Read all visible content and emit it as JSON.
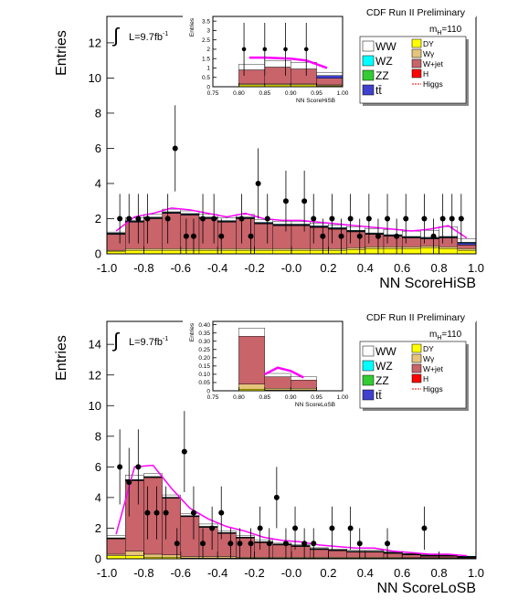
{
  "chart_data": [
    {
      "type": "histogram",
      "title": "CDF Run II Preliminary",
      "mass": "m",
      "mass_sub": "H",
      "mass_value": "=110",
      "lumi_symbol": "∫",
      "lumi": "L=9.7fb",
      "lumi_exp": "-1",
      "xlabel": "NN ScoreHiSB",
      "ylabel": "Entries",
      "bins": [
        -1,
        -0.9,
        -0.8,
        -0.7,
        -0.6,
        -0.5,
        -0.4,
        -0.3,
        -0.2,
        -0.1,
        0,
        0.1,
        0.2,
        0.3,
        0.4,
        0.5,
        0.6,
        0.7,
        0.8,
        0.9,
        1
      ],
      "xlim": [
        -1,
        1
      ],
      "xticks": [
        {
          "value": -1,
          "label": "-1.0"
        },
        -0.8,
        -0.6,
        -0.4,
        -0.2,
        {
          "value": 0,
          "label": "-0.0"
        },
        0.2,
        0.4,
        0.6,
        0.8,
        {
          "value": 1,
          "label": "1.0"
        }
      ],
      "ylim": [
        0,
        13.5
      ],
      "yticks": [
        0,
        2,
        4,
        6,
        8,
        10,
        12
      ],
      "series": [
        {
          "name": "DY",
          "color": "#ffff00",
          "values": [
            0.15,
            0.2,
            0.2,
            0.2,
            0.2,
            0.2,
            0.2,
            0.2,
            0.2,
            0.2,
            0.2,
            0.2,
            0.2,
            0.25,
            0.3,
            0.3,
            0.3,
            0.35,
            0.3,
            0.2
          ]
        },
        {
          "name": "Wγ",
          "color": "#e6c47c",
          "values": [
            0.05,
            0.1,
            0.1,
            0.1,
            0.1,
            0.1,
            0.1,
            0.1,
            0.1,
            0.1,
            0.1,
            0.1,
            0.1,
            0.1,
            0.1,
            0.1,
            0.1,
            0.1,
            0.1,
            0.1
          ]
        },
        {
          "name": "W+jet",
          "color": "#c8646a",
          "values": [
            0.9,
            1.5,
            1.7,
            2.0,
            1.9,
            1.7,
            1.5,
            1.7,
            1.4,
            1.3,
            1.3,
            1.2,
            1.1,
            0.9,
            0.7,
            0.6,
            0.5,
            0.4,
            0.5,
            0.2
          ]
        },
        {
          "name": "H",
          "color": "#ff0000",
          "values": [
            0.01,
            0.01,
            0.01,
            0.01,
            0.01,
            0.01,
            0.01,
            0.01,
            0.01,
            0.01,
            0.01,
            0.01,
            0.01,
            0.01,
            0.01,
            0.01,
            0.01,
            0.01,
            0.01,
            0.01
          ]
        },
        {
          "name": "tt̄",
          "color": "#4040cc",
          "values": [
            0.03,
            0.03,
            0.03,
            0.03,
            0.03,
            0.03,
            0.03,
            0.03,
            0.03,
            0.03,
            0.03,
            0.03,
            0.03,
            0.03,
            0.03,
            0.03,
            0.03,
            0.03,
            0.03,
            0.1
          ]
        },
        {
          "name": "ZZ",
          "color": "#33cc33",
          "values": [
            0.02,
            0.02,
            0.02,
            0.02,
            0.02,
            0.02,
            0.02,
            0.02,
            0.02,
            0.02,
            0.02,
            0.02,
            0.02,
            0.02,
            0.02,
            0.02,
            0.02,
            0.02,
            0.02,
            0.02
          ]
        },
        {
          "name": "WZ",
          "color": "#00ffff",
          "values": [
            0.03,
            0.03,
            0.03,
            0.03,
            0.03,
            0.03,
            0.03,
            0.03,
            0.03,
            0.03,
            0.03,
            0.03,
            0.03,
            0.03,
            0.03,
            0.03,
            0.03,
            0.03,
            0.03,
            0.03
          ]
        },
        {
          "name": "WW",
          "color": "#ffffff",
          "values": [
            0.05,
            0.15,
            0.15,
            0.15,
            0.15,
            0.15,
            0.15,
            0.15,
            0.15,
            0.15,
            0.15,
            0.15,
            0.15,
            0.2,
            0.25,
            0.3,
            0.3,
            0.4,
            0.55,
            0.2
          ]
        }
      ],
      "signal": {
        "name": "Higgs",
        "color": "#ff00ff",
        "values": [
          1.3,
          2.1,
          2.3,
          2.6,
          2.5,
          2.3,
          2.1,
          2.3,
          2.0,
          1.9,
          1.9,
          1.8,
          1.7,
          1.6,
          1.5,
          1.4,
          1.3,
          1.4,
          1.6,
          0.9
        ]
      },
      "data_points": {
        "x": [
          -0.93,
          -0.88,
          -0.83,
          -0.78,
          -0.67,
          -0.63,
          -0.57,
          -0.53,
          -0.48,
          -0.42,
          -0.38,
          -0.27,
          -0.22,
          -0.18,
          -0.13,
          -0.03,
          0.07,
          0.12,
          0.17,
          0.22,
          0.27,
          0.32,
          0.37,
          0.42,
          0.47,
          0.52,
          0.57,
          0.62,
          0.72,
          0.77,
          0.82,
          0.87,
          0.92
        ],
        "values": [
          2,
          2,
          2,
          2,
          2,
          6,
          1,
          1,
          2,
          2,
          1,
          2,
          1,
          4,
          2,
          3,
          3,
          2,
          1,
          2,
          1,
          2,
          1,
          2,
          1,
          2,
          1,
          2,
          2,
          1,
          2,
          2,
          2
        ],
        "errors": [
          1.41,
          1.41,
          1.41,
          1.41,
          1.41,
          2.45,
          1,
          1,
          1.41,
          1.41,
          1,
          1.41,
          1,
          2,
          1.41,
          1.73,
          1.73,
          1.41,
          1,
          1.41,
          1,
          1.41,
          1,
          1.41,
          1,
          1.41,
          1,
          1.41,
          1.41,
          1,
          1.41,
          1.41,
          1.41
        ]
      }
    },
    {
      "type": "histogram",
      "xlabel": "NN ScoreHiSB",
      "ylabel": "Entries",
      "bins": [
        0.75,
        0.8,
        0.85,
        0.9,
        0.95,
        1
      ],
      "xlim": [
        0.75,
        1
      ],
      "xticks": [
        0.75,
        {
          "value": 0.8,
          "label": "0.80"
        },
        0.85,
        {
          "value": 0.9,
          "label": "0.90"
        },
        0.95,
        {
          "value": 1,
          "label": "1.00"
        }
      ],
      "ylim": [
        0,
        3.75
      ],
      "yticks": [
        0,
        0.5,
        1,
        1.5,
        2,
        2.5,
        3,
        3.5
      ],
      "series": [
        {
          "name": "DY",
          "color": "#ffff00",
          "values": [
            0,
            0.1,
            0.1,
            0.1,
            0.05
          ]
        },
        {
          "name": "Wγ",
          "color": "#e6c47c",
          "values": [
            0,
            0.05,
            0.05,
            0.05,
            0.05
          ]
        },
        {
          "name": "W+jet",
          "color": "#c8646a",
          "values": [
            0,
            0.75,
            0.9,
            0.8,
            0.35
          ]
        },
        {
          "name": "tt̄",
          "color": "#4040cc",
          "values": [
            0,
            0,
            0,
            0,
            0.15
          ]
        },
        {
          "name": "WW",
          "color": "#ffffff",
          "values": [
            0,
            0.3,
            0.35,
            0.35,
            0.15
          ]
        }
      ],
      "signal": {
        "color": "#ff00ff",
        "x": [
          0.82,
          0.85,
          0.9,
          0.93,
          0.97
        ],
        "values": [
          1.55,
          1.55,
          1.5,
          1.4,
          1.0
        ]
      },
      "data_points": {
        "x": [
          0.81,
          0.85,
          0.89,
          0.93
        ],
        "values": [
          2,
          2,
          2,
          2
        ],
        "errors": [
          1.41,
          1.41,
          1.41,
          1.41
        ]
      }
    },
    {
      "type": "histogram",
      "title": "CDF Run II Preliminary",
      "mass": "m",
      "mass_sub": "H",
      "mass_value": "=110",
      "lumi_symbol": "∫",
      "lumi": "L=9.7fb",
      "lumi_exp": "-1",
      "xlabel": "NN ScoreLoSB",
      "ylabel": "Entries",
      "bins": [
        -1,
        -0.9,
        -0.8,
        -0.7,
        -0.6,
        -0.5,
        -0.4,
        -0.3,
        -0.2,
        -0.1,
        0,
        0.1,
        0.2,
        0.3,
        0.4,
        0.5,
        0.6,
        0.7,
        0.8,
        0.9,
        1
      ],
      "xlim": [
        -1,
        1
      ],
      "xticks": [
        {
          "value": -1,
          "label": "-1.0"
        },
        -0.8,
        -0.6,
        -0.4,
        -0.2,
        {
          "value": 0,
          "label": "-0.0"
        },
        0.2,
        0.4,
        0.6,
        0.8,
        {
          "value": 1,
          "label": "1.0"
        }
      ],
      "ylim": [
        0,
        15.5
      ],
      "yticks": [
        0,
        2,
        4,
        6,
        8,
        10,
        12,
        14
      ],
      "series": [
        {
          "name": "DY",
          "color": "#ffff00",
          "values": [
            0.2,
            0.2,
            0.1,
            0.1,
            0.05,
            0.05,
            0.05,
            0.05,
            0.05,
            0.05,
            0.05,
            0.05,
            0.05,
            0.05,
            0.05,
            0.05,
            0.05,
            0.05,
            0.05,
            0.05
          ]
        },
        {
          "name": "Wγ",
          "color": "#e6c47c",
          "values": [
            0.1,
            0.3,
            0.2,
            0.15,
            0.1,
            0.1,
            0.1,
            0.05,
            0.05,
            0.05,
            0.05,
            0.05,
            0.05,
            0.05,
            0.05,
            0.05,
            0.02,
            0.02,
            0.02,
            0.01
          ]
        },
        {
          "name": "W+jet",
          "color": "#c8646a",
          "values": [
            1.0,
            4.6,
            5.0,
            3.7,
            2.6,
            1.9,
            1.5,
            1.25,
            0.95,
            0.8,
            0.7,
            0.5,
            0.42,
            0.33,
            0.33,
            0.25,
            0.18,
            0.1,
            0.1,
            0.03
          ]
        },
        {
          "name": "H",
          "color": "#ff0000",
          "values": [
            0.01,
            0.01,
            0.01,
            0.01,
            0.01,
            0.01,
            0.01,
            0.01,
            0.01,
            0.01,
            0.01,
            0.01,
            0.01,
            0.01,
            0.01,
            0.01,
            0.01,
            0.01,
            0.01,
            0.01
          ]
        },
        {
          "name": "tt̄",
          "color": "#4040cc",
          "values": [
            0.02,
            0.02,
            0.02,
            0.02,
            0.02,
            0.02,
            0.02,
            0.02,
            0.02,
            0.02,
            0.02,
            0.02,
            0.02,
            0.02,
            0.02,
            0.02,
            0.02,
            0.02,
            0.02,
            0.02
          ]
        },
        {
          "name": "ZZ",
          "color": "#33cc33",
          "values": [
            0.02,
            0.02,
            0.02,
            0.02,
            0.02,
            0.02,
            0.02,
            0.02,
            0.02,
            0.02,
            0.02,
            0.02,
            0.02,
            0.02,
            0.02,
            0.02,
            0.02,
            0.02,
            0.02,
            0.02
          ]
        },
        {
          "name": "WZ",
          "color": "#00ffff",
          "values": [
            0.02,
            0.02,
            0.02,
            0.02,
            0.02,
            0.02,
            0.02,
            0.02,
            0.02,
            0.02,
            0.02,
            0.02,
            0.02,
            0.02,
            0.02,
            0.02,
            0.02,
            0.02,
            0.02,
            0.02
          ]
        },
        {
          "name": "WW",
          "color": "#ffffff",
          "values": [
            0.15,
            0.3,
            0.2,
            0.15,
            0.15,
            0.15,
            0.1,
            0.1,
            0.1,
            0.05,
            0.05,
            0.05,
            0.05,
            0.05,
            0.05,
            0.03,
            0.03,
            0.03,
            0.03,
            0.01
          ]
        }
      ],
      "signal": {
        "name": "Higgs",
        "color": "#ff00ff",
        "values": [
          1.6,
          6.0,
          6.1,
          4.6,
          3.3,
          2.6,
          2.1,
          1.8,
          1.4,
          1.2,
          1.1,
          0.9,
          0.8,
          0.7,
          0.7,
          0.5,
          0.4,
          0.3,
          0.3,
          0.2
        ]
      },
      "data_points": {
        "x": [
          -0.93,
          -0.88,
          -0.83,
          -0.78,
          -0.73,
          -0.68,
          -0.62,
          -0.58,
          -0.53,
          -0.48,
          -0.43,
          -0.38,
          -0.33,
          -0.28,
          -0.22,
          -0.17,
          -0.12,
          -0.08,
          -0.03,
          0.02,
          0.07,
          0.12,
          0.22,
          0.32,
          0.37,
          0.52,
          0.72
        ],
        "values": [
          6,
          5,
          6,
          3,
          3,
          3,
          1,
          7,
          3,
          1,
          2,
          3,
          1,
          1,
          1,
          2,
          1,
          4,
          1,
          2,
          1,
          1,
          2,
          2,
          1,
          1,
          2
        ],
        "errors": [
          2.45,
          2.24,
          2.45,
          1.73,
          1.73,
          1.73,
          1,
          2.65,
          1.73,
          1,
          1.41,
          1.73,
          1,
          1,
          1,
          1.41,
          1,
          2,
          1,
          1.41,
          1,
          1,
          1.41,
          1.41,
          1,
          1,
          1.41
        ]
      }
    },
    {
      "type": "histogram",
      "xlabel": "NN ScoreLoSB",
      "ylabel": "Entries",
      "bins": [
        0.75,
        0.8,
        0.85,
        0.9,
        0.95,
        1
      ],
      "xlim": [
        0.75,
        1
      ],
      "xticks": [
        0.75,
        {
          "value": 0.8,
          "label": "0.80"
        },
        0.85,
        {
          "value": 0.9,
          "label": "0.90"
        },
        0.95,
        {
          "value": 1,
          "label": "1.00"
        }
      ],
      "ylim": [
        0,
        0.42
      ],
      "yticks": [
        0,
        0.05,
        {
          "value": 0.1,
          "label": "0.10"
        },
        0.15,
        {
          "value": 0.2,
          "label": "0.20"
        },
        0.25,
        {
          "value": 0.3,
          "label": "0.30"
        },
        0.35,
        {
          "value": 0.4,
          "label": "0.40"
        }
      ],
      "series": [
        {
          "name": "DY",
          "color": "#ffff00",
          "values": [
            0,
            0.01,
            0.005,
            0.005,
            0
          ]
        },
        {
          "name": "Wγ",
          "color": "#e6c47c",
          "values": [
            0,
            0.03,
            0.01,
            0.01,
            0
          ]
        },
        {
          "name": "W+jet",
          "color": "#c8646a",
          "values": [
            0,
            0.29,
            0.07,
            0.05,
            0
          ]
        },
        {
          "name": "tt̄",
          "color": "#4040cc",
          "values": [
            0,
            0,
            0,
            0,
            0
          ]
        },
        {
          "name": "WW",
          "color": "#ffffff",
          "values": [
            0,
            0.05,
            0.02,
            0.02,
            0
          ]
        }
      ],
      "signal": {
        "color": "#ff00ff",
        "x": [
          0.85,
          0.875,
          0.9,
          0.925
        ],
        "values": [
          0.1,
          0.14,
          0.12,
          0.08
        ]
      }
    }
  ]
}
